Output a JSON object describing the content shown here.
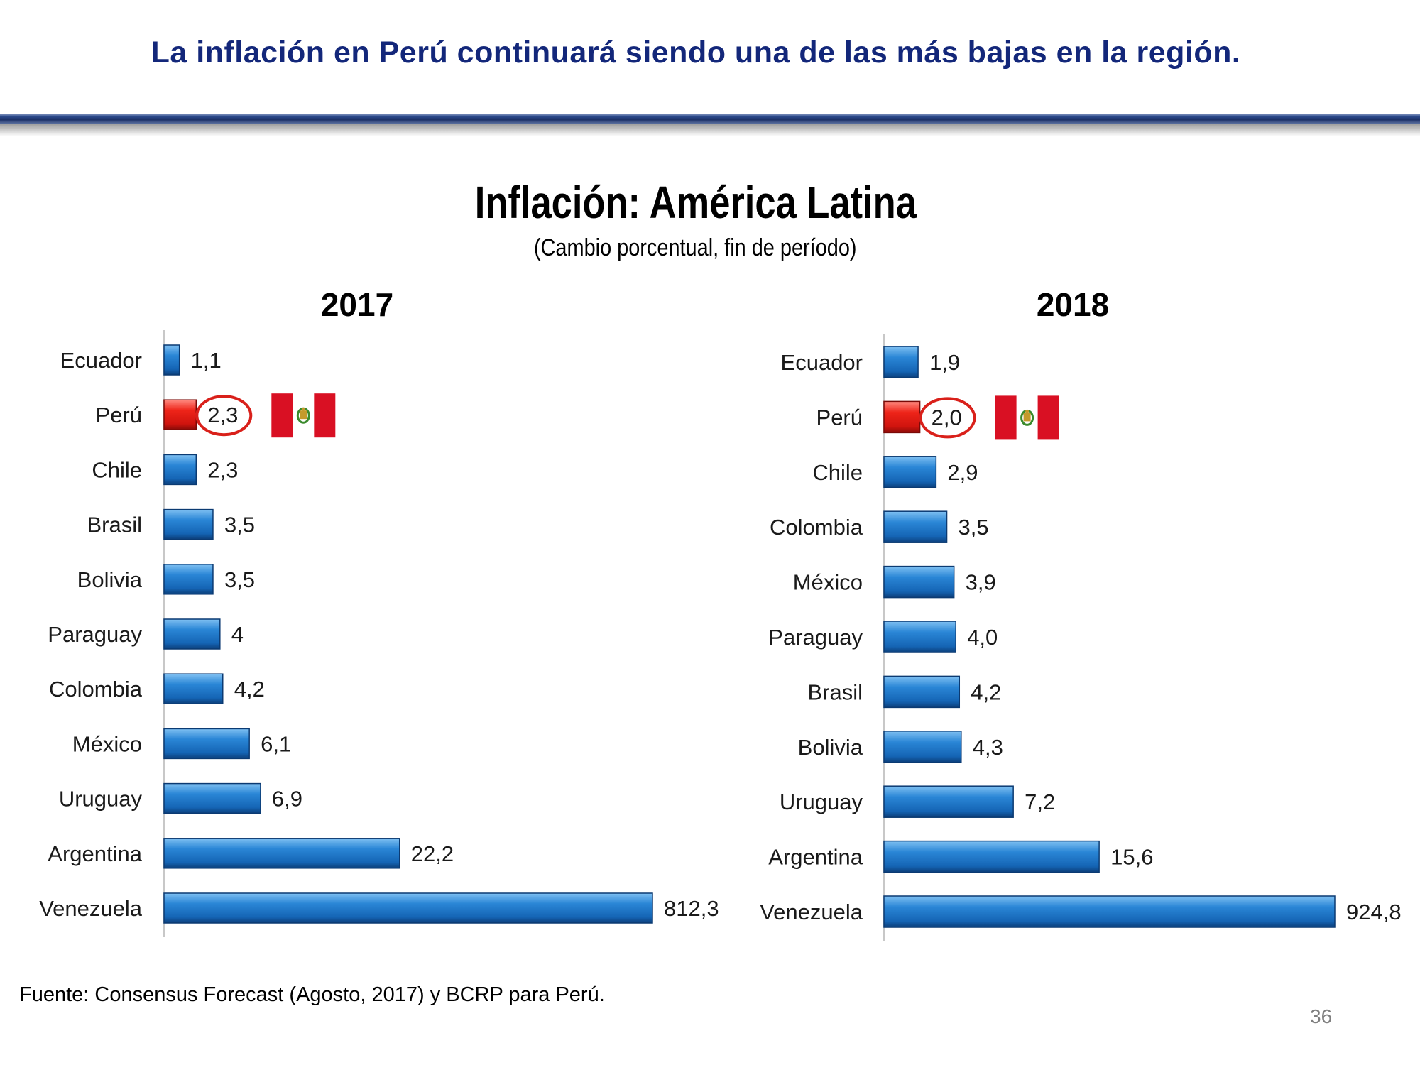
{
  "slide": {
    "title": "La inflación en Perú continuará siendo una de las más bajas en la región.",
    "footnote": "Fuente: Consensus Forecast (Agosto, 2017) y BCRP para Perú.",
    "page_number": "36"
  },
  "colors": {
    "title_blue": "#13277a",
    "bar_blue": "#1f77c8",
    "bar_red": "#e0201c",
    "circle_red": "#d9201a"
  },
  "chart_data": [
    {
      "type": "bar",
      "orientation": "horizontal",
      "title": "Inflación: América Latina",
      "subtitle": "(Cambio porcentual, fin de período)",
      "year": "2017",
      "categories": [
        "Ecuador",
        "Perú",
        "Chile",
        "Brasil",
        "Bolivia",
        "Paraguay",
        "Colombia",
        "México",
        "Uruguay",
        "Argentina",
        "Venezuela"
      ],
      "values": [
        1.1,
        2.3,
        2.3,
        3.5,
        3.5,
        4,
        4.2,
        6.1,
        6.9,
        22.2,
        812.3
      ],
      "labels": [
        "1,1",
        "2,3",
        "2,3",
        "3,5",
        "3,5",
        "4",
        "4,2",
        "6,1",
        "6,9",
        "22,2",
        "812,3"
      ],
      "highlight": "Perú",
      "highlight_flag": "peru-flag-icon",
      "scale": "broken"
    },
    {
      "type": "bar",
      "orientation": "horizontal",
      "year": "2018",
      "categories": [
        "Ecuador",
        "Perú",
        "Chile",
        "Colombia",
        "México",
        "Paraguay",
        "Brasil",
        "Bolivia",
        "Uruguay",
        "Argentina",
        "Venezuela"
      ],
      "values": [
        1.9,
        2.0,
        2.9,
        3.5,
        3.9,
        4.0,
        4.2,
        4.3,
        7.2,
        15.6,
        924.8
      ],
      "labels": [
        "1,9",
        "2,0",
        "2,9",
        "3,5",
        "3,9",
        "4,0",
        "4,2",
        "4,3",
        "7,2",
        "15,6",
        "924,8"
      ],
      "highlight": "Perú",
      "highlight_flag": "peru-flag-icon",
      "scale": "broken"
    }
  ]
}
